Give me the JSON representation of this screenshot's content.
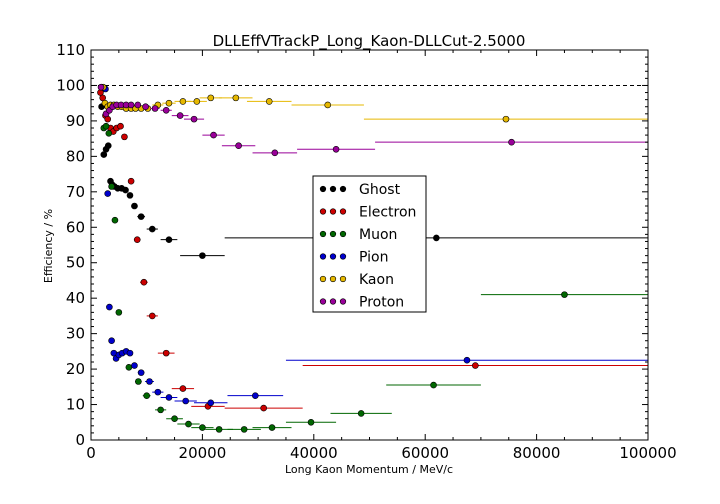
{
  "chart_data": {
    "type": "scatter",
    "title": "DLLEffVTrackP_Long_Kaon-DLLCut-2.5000",
    "xlabel": "Long Kaon Momentum / MeV/c",
    "ylabel": "Efficiency / %",
    "xlim": [
      0,
      100000
    ],
    "ylim": [
      0,
      110
    ],
    "xticks": [
      "0",
      "20000",
      "40000",
      "60000",
      "80000",
      "100000"
    ],
    "yticks": [
      "0",
      "10",
      "20",
      "30",
      "40",
      "50",
      "60",
      "70",
      "80",
      "90",
      "100",
      "110"
    ],
    "reference_line": 100,
    "legend_position": "center",
    "series": [
      {
        "name": "Ghost",
        "color": "#000000",
        "points": [
          [
            1900,
            94,
            300
          ],
          [
            2300,
            80.5,
            300
          ],
          [
            2700,
            82,
            300
          ],
          [
            3100,
            83,
            300
          ],
          [
            3500,
            73,
            300
          ],
          [
            3800,
            72,
            300
          ],
          [
            4200,
            71.5,
            300
          ],
          [
            4800,
            71,
            400
          ],
          [
            5500,
            71,
            400
          ],
          [
            6200,
            70.5,
            400
          ],
          [
            7000,
            69,
            500
          ],
          [
            7800,
            66,
            600
          ],
          [
            9000,
            63,
            700
          ],
          [
            11000,
            59.5,
            1000
          ],
          [
            14000,
            56.5,
            1500
          ],
          [
            20000,
            52,
            4000
          ],
          [
            62000,
            57,
            38000
          ]
        ]
      },
      {
        "name": "Electron",
        "color": "#cc0000",
        "points": [
          [
            1700,
            98,
            200
          ],
          [
            2100,
            96.5,
            200
          ],
          [
            2600,
            91.5,
            300
          ],
          [
            3000,
            90.5,
            300
          ],
          [
            3500,
            88,
            300
          ],
          [
            4000,
            87,
            300
          ],
          [
            4600,
            88,
            400
          ],
          [
            5300,
            88.5,
            400
          ],
          [
            6000,
            85.5,
            500
          ],
          [
            7200,
            73,
            500
          ],
          [
            8300,
            56.5,
            600
          ],
          [
            9500,
            44.5,
            700
          ],
          [
            11000,
            35,
            1000
          ],
          [
            13500,
            24.5,
            1500
          ],
          [
            16500,
            14.5,
            2000
          ],
          [
            21000,
            9.5,
            3000
          ],
          [
            31000,
            9,
            7000
          ],
          [
            69000,
            21,
            31000
          ]
        ]
      },
      {
        "name": "Muon",
        "color": "#006600",
        "points": [
          [
            2300,
            88,
            200
          ],
          [
            2700,
            88.5,
            200
          ],
          [
            3200,
            86.5,
            300
          ],
          [
            3700,
            71.5,
            300
          ],
          [
            4300,
            62,
            300
          ],
          [
            5000,
            36,
            400
          ],
          [
            6800,
            20.5,
            500
          ],
          [
            8500,
            16.5,
            600
          ],
          [
            10000,
            12.5,
            700
          ],
          [
            12500,
            8.5,
            1000
          ],
          [
            15000,
            6,
            1500
          ],
          [
            17500,
            4.5,
            2000
          ],
          [
            20000,
            3.5,
            2000
          ],
          [
            23000,
            3,
            2500
          ],
          [
            27500,
            3,
            3000
          ],
          [
            32500,
            3.5,
            3500
          ],
          [
            39500,
            5,
            4500
          ],
          [
            48500,
            7.5,
            5500
          ],
          [
            61500,
            15.5,
            8500
          ],
          [
            85000,
            41,
            15000
          ]
        ]
      },
      {
        "name": "Pion",
        "color": "#0000cc",
        "points": [
          [
            1900,
            99.5,
            200
          ],
          [
            2600,
            99,
            200
          ],
          [
            3000,
            69.5,
            300
          ],
          [
            3300,
            37.5,
            300
          ],
          [
            3700,
            28,
            300
          ],
          [
            4100,
            24.5,
            300
          ],
          [
            4500,
            23,
            300
          ],
          [
            5000,
            24,
            400
          ],
          [
            5600,
            24.5,
            400
          ],
          [
            6300,
            25,
            400
          ],
          [
            7000,
            24.5,
            500
          ],
          [
            7800,
            21,
            500
          ],
          [
            9000,
            19,
            600
          ],
          [
            10500,
            16.5,
            800
          ],
          [
            12000,
            13.5,
            1000
          ],
          [
            14000,
            12,
            1500
          ],
          [
            17000,
            11,
            2000
          ],
          [
            21500,
            10.5,
            3000
          ],
          [
            29500,
            12.5,
            5000
          ],
          [
            67500,
            22.5,
            32500
          ]
        ]
      },
      {
        "name": "Kaon",
        "color": "#e6b800",
        "points": [
          [
            2200,
            99.5,
            200
          ],
          [
            2500,
            95,
            200
          ],
          [
            3000,
            94,
            300
          ],
          [
            3500,
            94.5,
            300
          ],
          [
            4100,
            94.5,
            300
          ],
          [
            4800,
            94,
            400
          ],
          [
            5500,
            94,
            400
          ],
          [
            6300,
            93.5,
            400
          ],
          [
            7200,
            93.5,
            500
          ],
          [
            8000,
            93.5,
            500
          ],
          [
            9000,
            93.5,
            600
          ],
          [
            10200,
            93.5,
            700
          ],
          [
            12000,
            94.5,
            1000
          ],
          [
            14000,
            95,
            1200
          ],
          [
            16500,
            95.5,
            1500
          ],
          [
            19000,
            95.5,
            1800
          ],
          [
            21500,
            96.5,
            2000
          ],
          [
            26000,
            96.5,
            3000
          ],
          [
            32000,
            95.5,
            4000
          ],
          [
            42500,
            94.5,
            6500
          ],
          [
            74500,
            90.5,
            25500
          ]
        ]
      },
      {
        "name": "Proton",
        "color": "#990099",
        "points": [
          [
            1800,
            99.5,
            200
          ],
          [
            2700,
            92,
            300
          ],
          [
            3300,
            93,
            300
          ],
          [
            3900,
            94,
            300
          ],
          [
            4600,
            94.5,
            400
          ],
          [
            5400,
            94.5,
            400
          ],
          [
            6300,
            94.5,
            400
          ],
          [
            7200,
            94.5,
            500
          ],
          [
            8400,
            94.5,
            500
          ],
          [
            9800,
            94,
            600
          ],
          [
            11500,
            93.5,
            800
          ],
          [
            13500,
            93,
            1000
          ],
          [
            16000,
            91.5,
            1500
          ],
          [
            18500,
            90.5,
            1800
          ],
          [
            22000,
            86,
            2000
          ],
          [
            26500,
            83,
            3000
          ],
          [
            33000,
            81,
            4000
          ],
          [
            44000,
            82,
            7000
          ],
          [
            75500,
            84,
            24500
          ]
        ]
      }
    ]
  }
}
